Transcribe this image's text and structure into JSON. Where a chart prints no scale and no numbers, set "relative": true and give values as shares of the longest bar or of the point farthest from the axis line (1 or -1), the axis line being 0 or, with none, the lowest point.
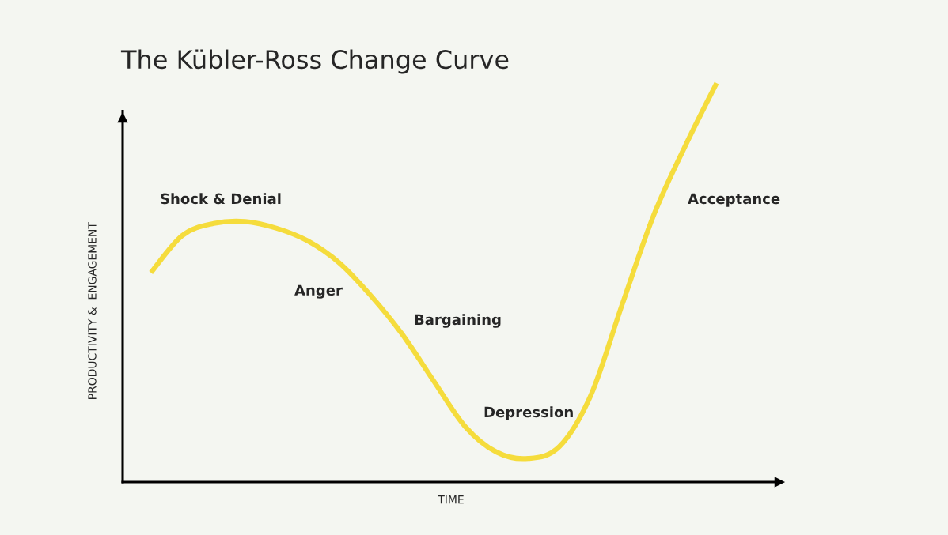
{
  "chart_data": {
    "type": "line",
    "title": "The Kübler-Ross Change Curve",
    "xlabel": "TIME",
    "ylabel": "PRODUCTIVITY &  ENGAGEMENT",
    "relative": true,
    "categories": [
      null,
      null,
      null,
      null,
      null,
      null,
      null,
      null,
      null,
      null,
      null,
      null,
      null,
      null,
      null,
      null,
      null,
      null,
      null
    ],
    "series": [
      {
        "color": "#f5dc3c",
        "values": [
          0.525,
          0.618,
          0.648,
          0.653,
          0.636,
          0.604,
          0.549,
          0.467,
          0.37,
          0.253,
          0.139,
          0.075,
          0.059,
          0.089,
          0.218,
          0.446,
          0.669,
          0.842,
          1
        ]
      }
    ],
    "annotations": [
      "Shock & Denial",
      "Anger",
      "Bargaining",
      "Depression",
      "Acceptance"
    ],
    "marker": "none",
    "line_style": "solid"
  }
}
